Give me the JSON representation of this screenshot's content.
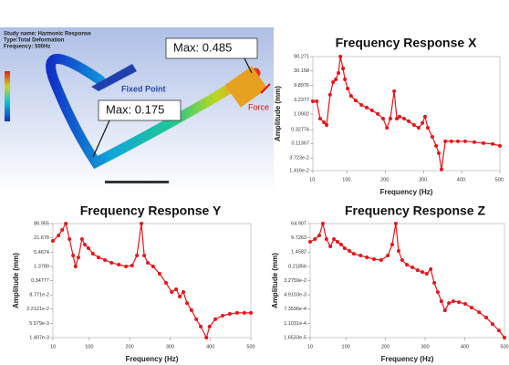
{
  "figure": {
    "header": [
      "Study name: Harmonic Response",
      "Type:Total Deformation",
      "Frequency: 500Hz"
    ],
    "max_labels": [
      "Max: 0.485",
      "Max: 0.175"
    ],
    "fixed_label": "Fixed Point",
    "force_label": "Force"
  },
  "chart_data": [
    {
      "type": "line",
      "title": "Frequency Response X",
      "x_label": "Frequency (Hz)",
      "y_label": "Amplitude (mm)",
      "color": "#e8141a",
      "log_y": true,
      "x": [
        10,
        20,
        29,
        39,
        46,
        55,
        63,
        70,
        77,
        82,
        89,
        94,
        101,
        110,
        122,
        137,
        151,
        165,
        180,
        194,
        204,
        213,
        223,
        230,
        237,
        249,
        261,
        275,
        287,
        297,
        304,
        311,
        323,
        333,
        340,
        347,
        357,
        373,
        390,
        409,
        433,
        457,
        481,
        500
      ],
      "values": [
        2.92,
        2.92,
        0.77,
        0.58,
        0.47,
        4.8,
        12.7,
        15.7,
        25.6,
        90,
        36,
        15.7,
        7.8,
        4.4,
        3.1,
        2.2,
        1.8,
        1.45,
        1.1,
        0.77,
        0.38,
        0.77,
        6.3,
        0.77,
        0.89,
        0.77,
        0.63,
        0.47,
        0.38,
        0.55,
        0.89,
        0.38,
        0.19,
        0.095,
        0.054,
        0.0155,
        0.135,
        0.135,
        0.135,
        0.135,
        0.126,
        0.117,
        0.11,
        0.095
      ],
      "xlim": [
        10,
        500
      ],
      "xticks": [
        {
          "value": 10,
          "label": "10."
        },
        {
          "value": 100,
          "label": "100."
        },
        {
          "value": 200,
          "label": "200."
        },
        {
          "value": 300,
          "label": "300."
        },
        {
          "value": 400,
          "label": "400."
        },
        {
          "value": 500,
          "label": "500."
        }
      ],
      "ylim": [
        0.01416,
        90.271
      ],
      "yticks": [
        90.271,
        30.158,
        9.8976,
        3.2377,
        1.0902,
        0.32774,
        0.11367,
        {
          "value": 0.03723,
          "label": "3.723e-2"
        },
        {
          "value": 0.01416,
          "label": "1.416e-2"
        }
      ]
    },
    {
      "type": "line",
      "title": "Frequency Response Y",
      "x_label": "Frequency (Hz)",
      "y_label": "Amplitude (mm)",
      "color": "#e8141a",
      "log_y": true,
      "x": [
        10,
        24,
        33,
        42,
        51,
        60,
        66,
        73,
        82,
        89,
        98,
        109,
        123,
        139,
        155,
        173,
        191,
        206,
        218,
        229,
        236,
        245,
        258,
        274,
        290,
        304,
        315,
        324,
        333,
        342,
        353,
        365,
        376,
        390,
        398,
        412,
        430,
        448,
        466,
        484,
        500
      ],
      "values": [
        16.3,
        27.6,
        46.9,
        86.96,
        19.4,
        3.96,
        1.38,
        3.3,
        19.4,
        11.4,
        8.0,
        4.7,
        3.3,
        2.55,
        1.96,
        1.64,
        1.38,
        1.5,
        3.96,
        86.96,
        3.96,
        1.96,
        1.38,
        0.68,
        0.28,
        0.116,
        0.152,
        0.075,
        0.116,
        0.04,
        0.02,
        0.0083,
        0.0041,
        0.0014,
        0.0041,
        0.0083,
        0.0117,
        0.014,
        0.0154,
        0.0154,
        0.0154
      ],
      "xlim": [
        10,
        500
      ],
      "xticks": [
        10,
        100,
        200,
        300,
        400,
        500
      ],
      "ylim": [
        0.001407,
        86.955
      ],
      "yticks": [
        86.955,
        21.678,
        5.4674,
        1.3789,
        0.34777,
        {
          "value": 0.08771,
          "label": "8.771e-2"
        },
        {
          "value": 0.022121,
          "label": "2.2121e-2"
        },
        {
          "value": 0.005579,
          "label": "5.579e-3"
        },
        {
          "value": 0.001407,
          "label": "1.407e-3"
        }
      ]
    },
    {
      "type": "line",
      "title": "Frequency Response Z",
      "x_label": "Frequency (Hz)",
      "y_label": "Amplitude (mm)",
      "color": "#e8141a",
      "log_y": true,
      "x": [
        10,
        22,
        33,
        42,
        51,
        61,
        70,
        79,
        88,
        97,
        109,
        120,
        137,
        153,
        171,
        189,
        206,
        217,
        226,
        233,
        242,
        254,
        268,
        281,
        293,
        304,
        314,
        323,
        332,
        341,
        350,
        360,
        371,
        385,
        401,
        417,
        436,
        454,
        470,
        486,
        500
      ],
      "values": [
        5.7,
        8.2,
        13.4,
        64.9,
        8.2,
        3.1,
        8.2,
        5.7,
        4.0,
        2.43,
        1.69,
        1.17,
        0.92,
        0.72,
        0.57,
        0.5,
        0.92,
        4.0,
        64.9,
        1.69,
        0.5,
        0.27,
        0.19,
        0.13,
        0.103,
        0.081,
        0.149,
        0.024,
        0.0071,
        0.0021,
        0.00062,
        0.00165,
        0.0021,
        0.00187,
        0.00147,
        0.0009,
        0.00049,
        0.00024,
        0.0001,
        4.3e-05,
        1.65e-05
      ],
      "xlim": [
        10,
        500
      ],
      "xticks": [
        10,
        100,
        200,
        300,
        400,
        500
      ],
      "ylim": [
        1.6533e-05,
        64.907
      ],
      "yticks": [
        64.907,
        9.7263,
        1.4582,
        0.21856,
        {
          "value": 0.032759,
          "label": "3.2759e-2"
        },
        {
          "value": 0.0049103,
          "label": "4.9103e-3"
        },
        {
          "value": 0.00073596,
          "label": "7.3596e-4"
        },
        {
          "value": 0.00011031,
          "label": "1.1031e-4"
        },
        {
          "value": 1.6533e-05,
          "label": "1.6533e-5"
        }
      ]
    }
  ]
}
